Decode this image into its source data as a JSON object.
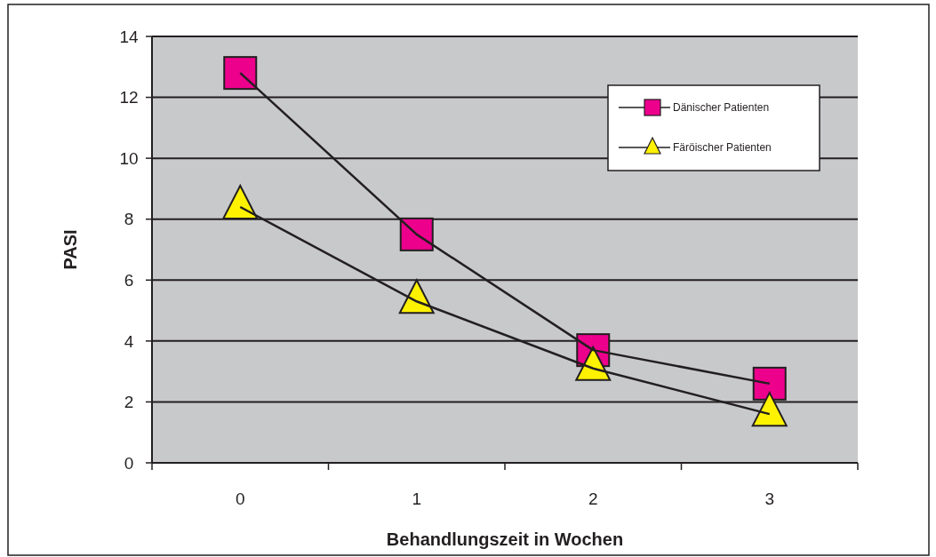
{
  "chart_data": {
    "type": "line",
    "xlabel": "Behandlungszeit in Wochen",
    "ylabel": "PASI",
    "categories": [
      "0",
      "1",
      "2",
      "3"
    ],
    "series": [
      {
        "name": "Dänischer Patienten",
        "color": "#ec008c",
        "marker": "square",
        "values": [
          12.8,
          7.5,
          3.7,
          2.6
        ]
      },
      {
        "name": "Färöischer Patienten",
        "color": "#fff200",
        "marker": "triangle",
        "values": [
          8.4,
          5.3,
          3.1,
          1.6
        ]
      }
    ],
    "ylim": [
      0,
      14
    ],
    "yticks": [
      0,
      2,
      4,
      6,
      8,
      10,
      12,
      14
    ],
    "grid": "y",
    "legend": "top right",
    "line_style": "solid"
  }
}
